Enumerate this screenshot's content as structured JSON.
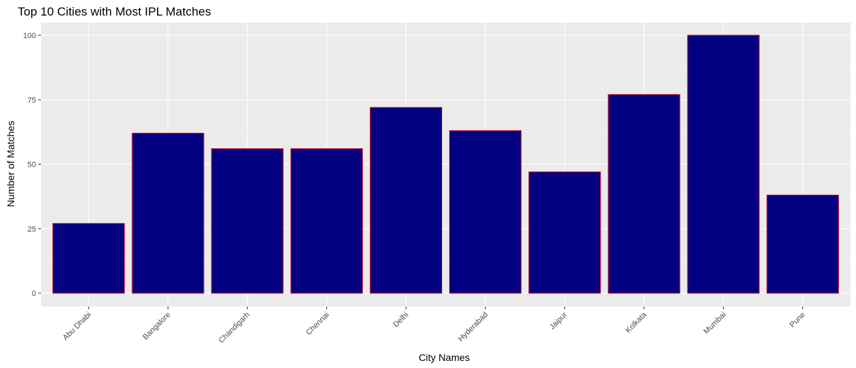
{
  "chart_data": {
    "type": "bar",
    "title": "Top 10 Cities with Most IPL Matches",
    "xlabel": "City Names",
    "ylabel": "Number of Matches",
    "categories": [
      "Abu Dhabi",
      "Bangalore",
      "Chandigarh",
      "Chennai",
      "Delhi",
      "Hyderabad",
      "Jaipur",
      "Kolkata",
      "Mumbai",
      "Pune"
    ],
    "values": [
      27,
      62,
      56,
      56,
      72,
      63,
      47,
      77,
      100,
      38
    ],
    "ylim": [
      0,
      105
    ],
    "yticks": [
      0,
      25,
      50,
      75,
      100
    ],
    "grid": true,
    "colors": {
      "bar_fill": "#000080",
      "bar_outline": "#b2002a",
      "panel_background": "#ebebeb",
      "grid_line": "#ffffff"
    }
  }
}
